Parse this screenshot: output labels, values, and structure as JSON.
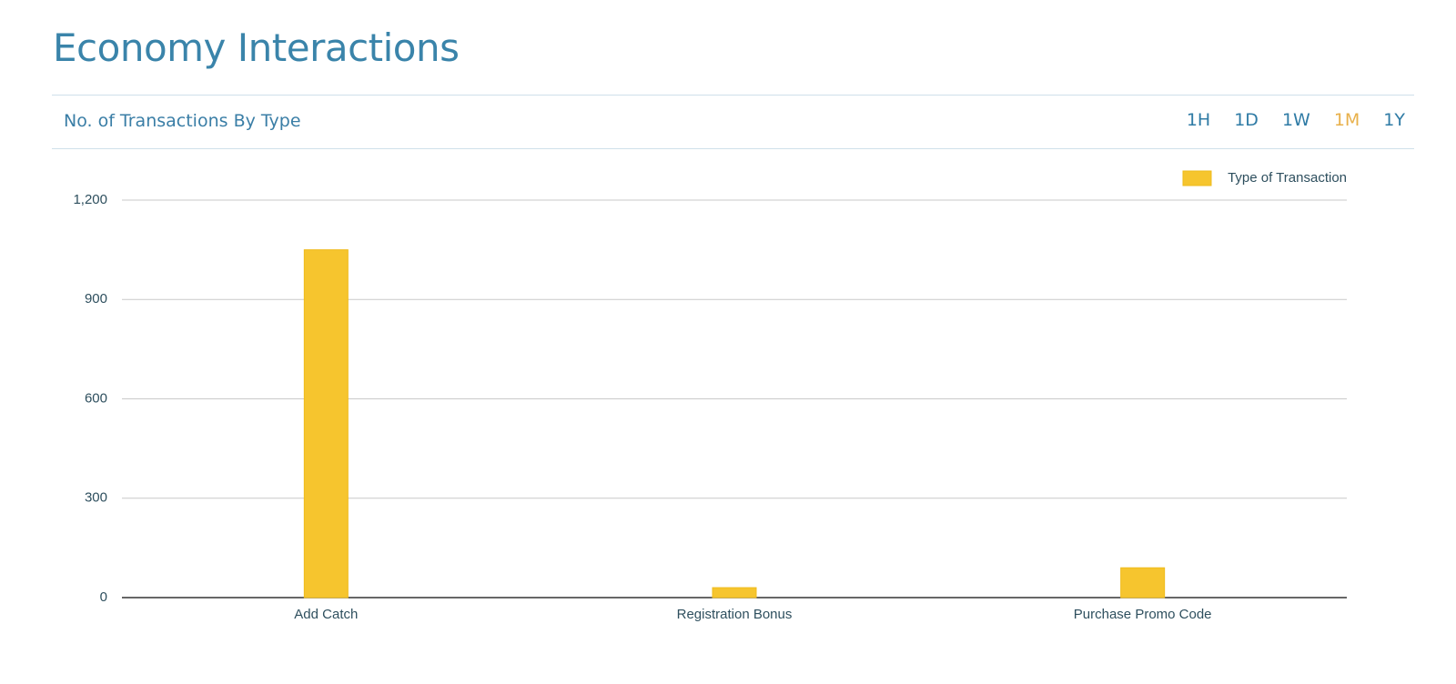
{
  "header": {
    "title": "Economy Interactions"
  },
  "panel": {
    "subtitle": "No. of Transactions By Type",
    "ranges": [
      "1H",
      "1D",
      "1W",
      "1M",
      "1Y"
    ],
    "active_range": 3
  },
  "chart_data": {
    "type": "bar",
    "categories": [
      "Add Catch",
      "Registration Bonus",
      "Purchase Promo Code"
    ],
    "series": [
      {
        "name": "Type of Transaction",
        "color": "#f6c52e",
        "values": [
          1050,
          30,
          90
        ]
      }
    ],
    "ylim": [
      0,
      1200
    ],
    "yticks": [
      0,
      300,
      600,
      900,
      {
        "value": 1200,
        "label": "1,200"
      }
    ],
    "grid": true,
    "legend": "top-right"
  }
}
